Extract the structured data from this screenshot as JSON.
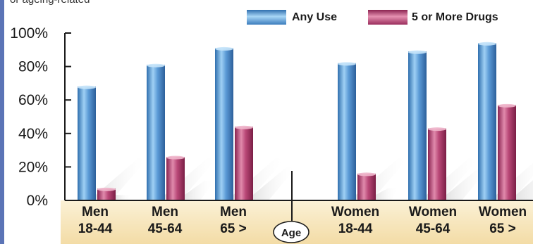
{
  "top_caption": "or ageing-related",
  "chart_data": {
    "type": "bar",
    "title": "",
    "xlabel": "Age",
    "ylabel": "",
    "ylim": [
      0,
      100
    ],
    "y_ticks": [
      "0%",
      "20%",
      "40%",
      "60%",
      "80%",
      "100%"
    ],
    "y_tick_values": [
      0,
      20,
      40,
      60,
      80,
      100
    ],
    "categories": [
      [
        "Men",
        "18-44"
      ],
      [
        "Men",
        "45-64"
      ],
      [
        "Men",
        "65 >"
      ],
      [
        "Women",
        "18-44"
      ],
      [
        "Women",
        "45-64"
      ],
      [
        "Women",
        "65 >"
      ]
    ],
    "series": [
      {
        "name": "Any Use",
        "values": [
          68,
          81,
          91,
          82,
          89,
          94
        ]
      },
      {
        "name": "5 or More Drugs",
        "values": [
          7,
          26,
          44,
          16,
          43,
          57
        ]
      }
    ],
    "legend_placement": "top-right",
    "grid": false,
    "colors": {
      "any_use": "#4f8fcf",
      "five_or_more": "#b03a67",
      "axis_band": "#f6e4b8"
    }
  }
}
